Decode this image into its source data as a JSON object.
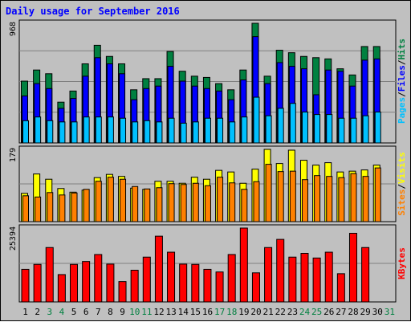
{
  "title": "Daily usage for September 2016",
  "colors": {
    "hits": "#008040",
    "files": "#0000ff",
    "pages": "#00c0ff",
    "visits": "#ffff00",
    "sites": "#ff8000",
    "kbytes": "#ff0000",
    "weekend_day": "#008040",
    "weekday_day": "#000000",
    "background": "#c0c0c0",
    "plot_background": "#c0c0c0"
  },
  "legend": {
    "top": {
      "pages": "Pages",
      "files": "Files",
      "hits": "Hits",
      "sep": "/"
    },
    "middle": {
      "sites": "Sites",
      "visits": "Visits",
      "sep": "/"
    },
    "bottom": {
      "kbytes": "KBytes"
    }
  },
  "chart_data": [
    {
      "type": "bar",
      "panel": "hits-files-pages",
      "ymax_label": "968",
      "ylim": [
        0,
        968
      ],
      "categories": [
        "1",
        "2",
        "3",
        "4",
        "5",
        "6",
        "7",
        "8",
        "9",
        "10",
        "11",
        "12",
        "13",
        "14",
        "15",
        "16",
        "17",
        "18",
        "19",
        "20",
        "21",
        "22",
        "23",
        "24",
        "25",
        "26",
        "27",
        "28",
        "29",
        "30",
        "31"
      ],
      "series": [
        {
          "name": "Hits",
          "values": [
            500,
            590,
            560,
            330,
            420,
            640,
            790,
            700,
            640,
            430,
            520,
            520,
            740,
            580,
            540,
            530,
            480,
            430,
            590,
            968,
            540,
            750,
            730,
            700,
            690,
            680,
            600,
            550,
            780,
            780,
            0
          ]
        },
        {
          "name": "Files",
          "values": [
            380,
            480,
            440,
            280,
            360,
            540,
            690,
            640,
            560,
            350,
            440,
            460,
            620,
            500,
            460,
            440,
            420,
            350,
            510,
            860,
            480,
            650,
            620,
            600,
            390,
            590,
            580,
            460,
            670,
            680,
            0
          ]
        },
        {
          "name": "Pages",
          "values": [
            180,
            210,
            180,
            170,
            170,
            210,
            210,
            210,
            200,
            170,
            180,
            170,
            200,
            160,
            170,
            200,
            200,
            170,
            210,
            370,
            220,
            280,
            320,
            250,
            230,
            230,
            200,
            200,
            220,
            250,
            0
          ]
        }
      ]
    },
    {
      "type": "bar",
      "panel": "visits-sites",
      "ymax_label": "179",
      "ylim": [
        0,
        179
      ],
      "categories": [
        "1",
        "2",
        "3",
        "4",
        "5",
        "6",
        "7",
        "8",
        "9",
        "10",
        "11",
        "12",
        "13",
        "14",
        "15",
        "16",
        "17",
        "18",
        "19",
        "20",
        "21",
        "22",
        "23",
        "24",
        "25",
        "26",
        "27",
        "28",
        "29",
        "30",
        "31"
      ],
      "series": [
        {
          "name": "Visits",
          "values": [
            70,
            118,
            105,
            82,
            73,
            78,
            109,
            117,
            112,
            83,
            80,
            100,
            100,
            95,
            110,
            105,
            127,
            123,
            95,
            130,
            179,
            144,
            177,
            152,
            140,
            146,
            123,
            125,
            128,
            140,
            0
          ]
        },
        {
          "name": "Sites",
          "values": [
            64,
            61,
            72,
            66,
            71,
            80,
            100,
            110,
            105,
            87,
            81,
            84,
            94,
            92,
            95,
            89,
            110,
            96,
            80,
            99,
            142,
            124,
            125,
            104,
            114,
            112,
            109,
            119,
            112,
            133,
            0
          ]
        }
      ]
    },
    {
      "type": "bar",
      "panel": "kbytes",
      "ymax_label": "25394",
      "ylim": [
        0,
        25394
      ],
      "categories": [
        "1",
        "2",
        "3",
        "4",
        "5",
        "6",
        "7",
        "8",
        "9",
        "10",
        "11",
        "12",
        "13",
        "14",
        "15",
        "16",
        "17",
        "18",
        "19",
        "20",
        "21",
        "22",
        "23",
        "24",
        "25",
        "26",
        "27",
        "28",
        "29",
        "30",
        "31"
      ],
      "series": [
        {
          "name": "KBytes",
          "values": [
            11200,
            12900,
            18700,
            9400,
            12900,
            13900,
            16300,
            13000,
            7000,
            10900,
            15400,
            22600,
            17100,
            13000,
            12900,
            11200,
            10300,
            16300,
            25394,
            10000,
            18700,
            21500,
            15400,
            16700,
            15100,
            17100,
            9700,
            23600,
            18700,
            0,
            0
          ]
        }
      ]
    }
  ]
}
